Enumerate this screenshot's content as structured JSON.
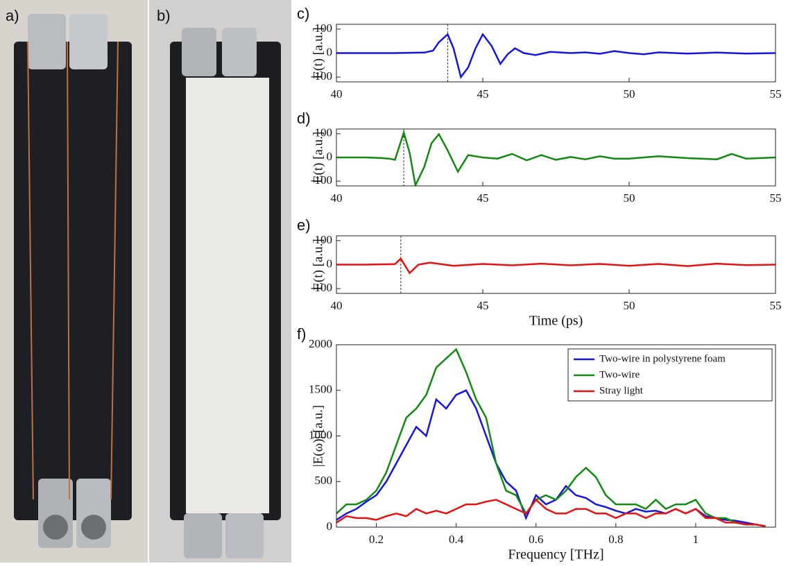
{
  "panel_labels": [
    "a)",
    "b)"
  ],
  "chart_data": [
    {
      "type": "line",
      "label": "c)",
      "ylabel": "E(t) [a.u.]",
      "xlim": [
        40,
        55
      ],
      "ylim": [
        -120,
        120
      ],
      "xticks": [
        40,
        45,
        50,
        55
      ],
      "yticks": [
        -100,
        0,
        100
      ],
      "vline": 43.8,
      "x": [
        40,
        41,
        42,
        43,
        43.3,
        43.5,
        43.8,
        44.0,
        44.25,
        44.5,
        44.75,
        45.0,
        45.3,
        45.6,
        45.85,
        46.1,
        46.4,
        46.8,
        47.3,
        48,
        48.5,
        49,
        49.5,
        50,
        50.5,
        51,
        52,
        53,
        54,
        55
      ],
      "series": [
        {
          "color": "#1515e0",
          "values": [
            0,
            0,
            0,
            2,
            10,
            45,
            78,
            20,
            -100,
            -60,
            20,
            78,
            30,
            -45,
            -5,
            20,
            0,
            -8,
            5,
            0,
            3,
            -3,
            8,
            0,
            -5,
            3,
            -2,
            2,
            -2,
            0
          ]
        }
      ]
    },
    {
      "type": "line",
      "label": "d)",
      "ylabel": "E(t) [a.u.]",
      "xlim": [
        40,
        55
      ],
      "ylim": [
        -120,
        120
      ],
      "xticks": [
        40,
        45,
        50,
        55
      ],
      "yticks": [
        -100,
        0,
        100
      ],
      "vline": 42.3,
      "x": [
        40,
        41,
        41.5,
        41.8,
        42.0,
        42.3,
        42.5,
        42.7,
        43.0,
        43.25,
        43.5,
        43.8,
        44.15,
        44.5,
        45,
        45.5,
        46,
        46.5,
        47,
        47.5,
        48,
        48.5,
        49,
        49.5,
        50,
        51,
        52,
        53,
        53.5,
        54,
        55
      ],
      "series": [
        {
          "color": "#108a10",
          "values": [
            0,
            0,
            -2,
            -5,
            -10,
            105,
            20,
            -118,
            -40,
            60,
            98,
            30,
            -60,
            10,
            0,
            -5,
            15,
            -12,
            10,
            -10,
            2,
            -8,
            5,
            -5,
            -5,
            5,
            -3,
            -8,
            15,
            -5,
            0
          ]
        }
      ]
    },
    {
      "type": "line",
      "label": "e)",
      "ylabel": "E(t) [a.u.]",
      "xlabel": "Time (ps)",
      "xlim": [
        40,
        55
      ],
      "ylim": [
        -120,
        120
      ],
      "xticks": [
        40,
        45,
        50,
        55
      ],
      "yticks": [
        -100,
        0,
        100
      ],
      "vline": 42.2,
      "x": [
        40,
        41,
        42,
        42.2,
        42.5,
        42.8,
        43.2,
        44,
        45,
        46,
        47,
        48,
        49,
        50,
        51,
        52,
        53,
        54,
        55
      ],
      "series": [
        {
          "color": "#e81010",
          "values": [
            0,
            0,
            2,
            25,
            -35,
            0,
            8,
            -5,
            3,
            -3,
            4,
            -3,
            3,
            -5,
            3,
            -6,
            4,
            -2,
            0
          ]
        }
      ]
    },
    {
      "type": "line",
      "label": "f)",
      "ylabel": "|E(ω)| [a.u.]",
      "xlabel": "Frequency [THz]",
      "xlim": [
        0.1,
        1.2
      ],
      "ylim": [
        0,
        2000
      ],
      "xticks": [
        0.2,
        0.4,
        0.6,
        0.8,
        1
      ],
      "yticks": [
        0,
        500,
        1000,
        1500,
        2000
      ],
      "legend": "top-right",
      "x": [
        0.1,
        0.125,
        0.15,
        0.175,
        0.2,
        0.225,
        0.25,
        0.275,
        0.3,
        0.325,
        0.35,
        0.375,
        0.4,
        0.425,
        0.45,
        0.475,
        0.5,
        0.525,
        0.55,
        0.575,
        0.6,
        0.625,
        0.65,
        0.675,
        0.7,
        0.725,
        0.75,
        0.775,
        0.8,
        0.825,
        0.85,
        0.875,
        0.9,
        0.925,
        0.95,
        0.975,
        1.0,
        1.025,
        1.05,
        1.075,
        1.1,
        1.125,
        1.15,
        1.175
      ],
      "series": [
        {
          "name": "Two-wire in polystyrene foam",
          "color": "#1515e0",
          "values": [
            80,
            150,
            200,
            280,
            350,
            500,
            700,
            900,
            1100,
            1000,
            1400,
            1300,
            1450,
            1500,
            1300,
            1000,
            700,
            500,
            400,
            100,
            350,
            250,
            300,
            450,
            350,
            320,
            250,
            220,
            180,
            150,
            200,
            170,
            180,
            150,
            200,
            150,
            200,
            120,
            100,
            80,
            70,
            50,
            30,
            10
          ]
        },
        {
          "name": "Two-wire",
          "color": "#108a10",
          "values": [
            150,
            250,
            250,
            300,
            400,
            600,
            900,
            1200,
            1300,
            1450,
            1750,
            1850,
            1950,
            1700,
            1400,
            1200,
            700,
            400,
            350,
            150,
            300,
            350,
            300,
            400,
            550,
            650,
            550,
            350,
            250,
            250,
            250,
            200,
            300,
            200,
            250,
            250,
            300,
            150,
            100,
            100,
            50,
            30,
            30,
            10
          ]
        },
        {
          "name": "Stray light",
          "color": "#e81010",
          "values": [
            50,
            120,
            100,
            100,
            80,
            120,
            150,
            120,
            200,
            150,
            180,
            150,
            200,
            250,
            250,
            280,
            300,
            250,
            200,
            150,
            300,
            200,
            150,
            150,
            200,
            200,
            150,
            150,
            100,
            150,
            150,
            100,
            150,
            150,
            200,
            150,
            200,
            100,
            100,
            50,
            50,
            30,
            30,
            10
          ]
        }
      ]
    }
  ]
}
